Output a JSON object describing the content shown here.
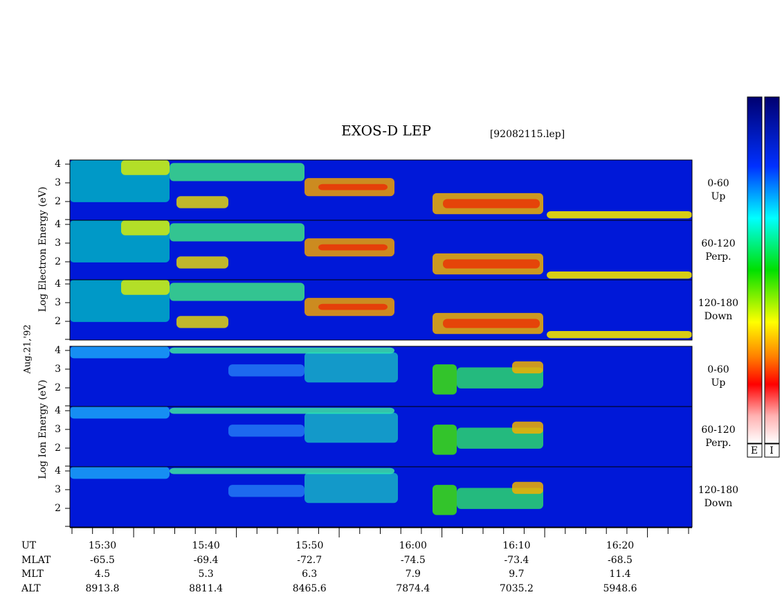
{
  "header": {
    "title": "EXOS-D LEP",
    "file": "[92082115.lep]"
  },
  "left_labels": {
    "electron": "Log  Electron  Energy (eV)",
    "ion": "Log  Ion  Energy (eV)",
    "date": "Aug.21,'92"
  },
  "panels": [
    {
      "yticks": [
        "4",
        "3",
        "2"
      ],
      "label": [
        "0-60",
        "Up"
      ]
    },
    {
      "yticks": [
        "4",
        "3",
        "2"
      ],
      "label": [
        "60-120",
        "Perp."
      ]
    },
    {
      "yticks": [
        "4",
        "3",
        "2"
      ],
      "label": [
        "120-180",
        "Down"
      ]
    },
    {
      "yticks": [
        "4",
        "3",
        "2"
      ],
      "label": [
        "0-60",
        "Up"
      ]
    },
    {
      "yticks": [
        "4",
        "3",
        "2"
      ],
      "label": [
        "60-120",
        "Perp."
      ]
    },
    {
      "yticks": [
        "4",
        "3",
        "2"
      ],
      "label": [
        "120-180",
        "Down"
      ]
    }
  ],
  "time_table": {
    "rows": [
      [
        "UT",
        "15:30",
        "15:40",
        "15:50",
        "16:00",
        "16:10",
        "16:20"
      ],
      [
        "MLAT",
        "-65.5",
        "-69.4",
        "-72.7",
        "-74.5",
        "-73.4",
        "-68.5"
      ],
      [
        "MLT",
        "4.5",
        "5.3",
        "6.3",
        "7.9",
        "9.7",
        "11.4"
      ],
      [
        "ALT",
        "8913.8",
        "8811.4",
        "8465.6",
        "7874.4",
        "7035.2",
        "5948.6"
      ]
    ]
  },
  "colorbar": {
    "labels": [
      "E",
      "I"
    ]
  }
}
